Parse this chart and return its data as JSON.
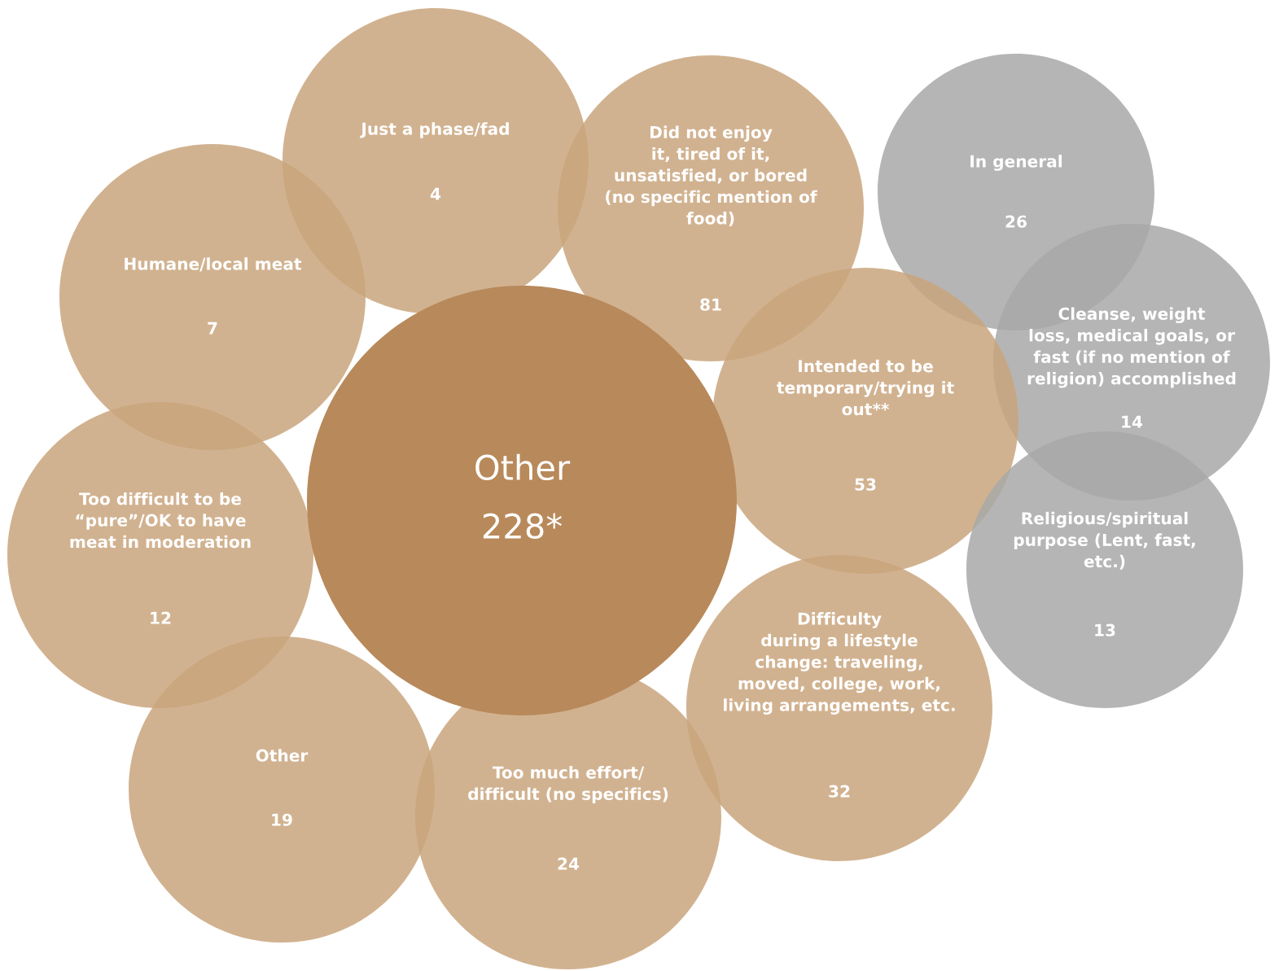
{
  "chart_data": {
    "type": "other",
    "categories": [
      "Other",
      "Just a phase/fad",
      "Did not enjoy\nit, tired of it,\nunsatisfied, or bored\n(no specific mention of\nfood)",
      "In general",
      "Humane/local meat",
      "Cleanse, weight\nloss, medical goals, or\nfast (if no mention of\nreligion) accomplished",
      "Intended to be\ntemporary/trying it\nout**",
      "Religious/spiritual\npurpose (Lent, fast,\netc.)",
      "Too difficult to be\n“pure”/OK to have\nmeat in moderation",
      "Difficulty\nduring a lifestyle\nchange: traveling,\nmoved, college, work,\nliving arrangements, etc.",
      "Other",
      "Too much effort/\ndifficult (no specifics)"
    ],
    "values": [
      228,
      4,
      81,
      26,
      7,
      14,
      53,
      13,
      12,
      32,
      19,
      24
    ],
    "value_labels": [
      "228*",
      "4",
      "81",
      "26",
      "7",
      "14",
      "53",
      "13",
      "12",
      "32",
      "19",
      "24"
    ],
    "colors": [
      "#b8895a",
      "#c9a47c",
      "#c9a47c",
      "#a8a8a8",
      "#c9a47c",
      "#a8a8a8",
      "#c9a47c",
      "#a8a8a8",
      "#c9a47c",
      "#c9a47c",
      "#c9a47c",
      "#c9a47c"
    ]
  }
}
